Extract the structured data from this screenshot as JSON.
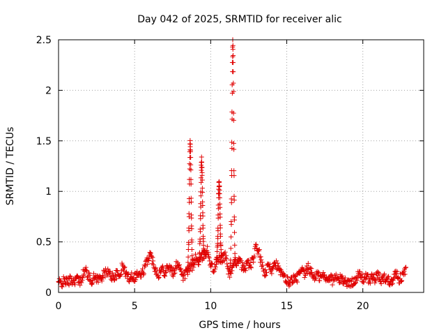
{
  "chart_data": {
    "type": "scatter",
    "title": "Day 042 of 2025, SRMTID for receiver alic",
    "xlabel": "GPS time / hours",
    "ylabel": "SRMTID / TECUs",
    "xlim": [
      0,
      24
    ],
    "ylim": [
      0,
      2.5
    ],
    "xticks": [
      0,
      5,
      10,
      15,
      20
    ],
    "yticks": [
      0,
      0.5,
      1,
      1.5,
      2,
      2.5
    ],
    "xtick_labels": [
      "0",
      "5",
      "10",
      "15",
      "20"
    ],
    "ytick_labels": [
      "0",
      "0.5",
      "1",
      "1.5",
      "2",
      "2.5"
    ],
    "grid": true,
    "marker": "+",
    "colors": {
      "marker": "#e00000",
      "grid": "#a0a0a0",
      "axis": "#000000"
    },
    "baseline_points": [
      [
        0.0,
        0.1
      ],
      [
        0.2,
        0.09
      ],
      [
        0.4,
        0.12
      ],
      [
        0.6,
        0.1
      ],
      [
        0.8,
        0.13
      ],
      [
        1.0,
        0.11
      ],
      [
        1.2,
        0.14
      ],
      [
        1.4,
        0.1
      ],
      [
        1.6,
        0.18
      ],
      [
        1.8,
        0.22
      ],
      [
        2.0,
        0.15
      ],
      [
        2.2,
        0.12
      ],
      [
        2.4,
        0.16
      ],
      [
        2.6,
        0.13
      ],
      [
        2.8,
        0.15
      ],
      [
        3.0,
        0.18
      ],
      [
        3.2,
        0.21
      ],
      [
        3.4,
        0.17
      ],
      [
        3.6,
        0.15
      ],
      [
        3.8,
        0.18
      ],
      [
        4.0,
        0.16
      ],
      [
        4.2,
        0.26
      ],
      [
        4.4,
        0.2
      ],
      [
        4.6,
        0.14
      ],
      [
        4.8,
        0.17
      ],
      [
        5.0,
        0.15
      ],
      [
        5.2,
        0.19
      ],
      [
        5.4,
        0.16
      ],
      [
        5.6,
        0.22
      ],
      [
        5.8,
        0.3
      ],
      [
        6.0,
        0.38
      ],
      [
        6.2,
        0.31
      ],
      [
        6.4,
        0.22
      ],
      [
        6.6,
        0.18
      ],
      [
        6.8,
        0.24
      ],
      [
        7.0,
        0.2
      ],
      [
        7.2,
        0.27
      ],
      [
        7.4,
        0.22
      ],
      [
        7.6,
        0.18
      ],
      [
        7.8,
        0.3
      ],
      [
        8.0,
        0.25
      ],
      [
        8.2,
        0.15
      ],
      [
        8.4,
        0.2
      ],
      [
        8.8,
        0.26
      ],
      [
        9.0,
        0.34
      ],
      [
        9.2,
        0.3
      ],
      [
        9.8,
        0.42
      ],
      [
        10.0,
        0.28
      ],
      [
        10.2,
        0.22
      ],
      [
        10.4,
        0.31
      ],
      [
        11.0,
        0.36
      ],
      [
        11.2,
        0.18
      ],
      [
        11.8,
        0.33
      ],
      [
        12.0,
        0.28
      ],
      [
        12.2,
        0.22
      ],
      [
        12.4,
        0.3
      ],
      [
        12.6,
        0.26
      ],
      [
        12.8,
        0.33
      ],
      [
        13.0,
        0.46
      ],
      [
        13.2,
        0.38
      ],
      [
        13.4,
        0.24
      ],
      [
        13.6,
        0.18
      ],
      [
        13.8,
        0.27
      ],
      [
        14.0,
        0.22
      ],
      [
        14.2,
        0.32
      ],
      [
        14.4,
        0.25
      ],
      [
        14.6,
        0.19
      ],
      [
        14.8,
        0.15
      ],
      [
        15.0,
        0.12
      ],
      [
        15.2,
        0.1
      ],
      [
        15.4,
        0.14
      ],
      [
        15.6,
        0.12
      ],
      [
        15.8,
        0.18
      ],
      [
        16.0,
        0.21
      ],
      [
        16.2,
        0.17
      ],
      [
        16.4,
        0.25
      ],
      [
        16.6,
        0.2
      ],
      [
        16.8,
        0.15
      ],
      [
        17.0,
        0.18
      ],
      [
        17.2,
        0.14
      ],
      [
        17.4,
        0.17
      ],
      [
        17.6,
        0.13
      ],
      [
        17.8,
        0.16
      ],
      [
        18.0,
        0.12
      ],
      [
        18.2,
        0.15
      ],
      [
        18.4,
        0.12
      ],
      [
        18.6,
        0.14
      ],
      [
        18.8,
        0.11
      ],
      [
        19.0,
        0.1
      ],
      [
        19.2,
        0.08
      ],
      [
        19.4,
        0.12
      ],
      [
        19.6,
        0.15
      ],
      [
        19.8,
        0.18
      ],
      [
        20.0,
        0.13
      ],
      [
        20.2,
        0.16
      ],
      [
        20.4,
        0.12
      ],
      [
        20.6,
        0.15
      ],
      [
        20.8,
        0.13
      ],
      [
        21.0,
        0.17
      ],
      [
        21.2,
        0.12
      ],
      [
        21.4,
        0.15
      ],
      [
        21.6,
        0.13
      ],
      [
        21.8,
        0.11
      ],
      [
        22.0,
        0.14
      ],
      [
        22.2,
        0.2
      ],
      [
        22.4,
        0.13
      ],
      [
        22.6,
        0.16
      ],
      [
        22.8,
        0.22
      ]
    ],
    "spike_peaks": [
      {
        "center_hour": 8.65,
        "peak_tecu": 1.5
      },
      {
        "center_hour": 9.4,
        "peak_tecu": 1.33
      },
      {
        "center_hour": 10.55,
        "peak_tecu": 1.11
      },
      {
        "center_hour": 11.45,
        "peak_tecu": 2.49
      }
    ]
  }
}
